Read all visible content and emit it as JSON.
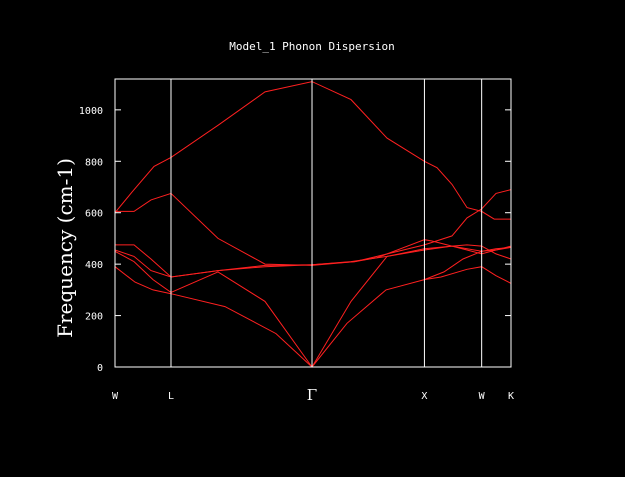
{
  "chart_data": {
    "type": "line",
    "title": "Model_1 Phonon Dispersion",
    "xlabel": "",
    "ylabel": "Frequency (cm-1)",
    "ylim": [
      0,
      1120
    ],
    "y_ticks": [
      0,
      200,
      400,
      600,
      800,
      1000
    ],
    "high_symmetry_points": [
      {
        "label": "W",
        "x": 0.0
      },
      {
        "label": "L",
        "x": 0.1414
      },
      {
        "label": "Γ",
        "x": 0.4975
      },
      {
        "label": "X",
        "x": 0.7814
      },
      {
        "label": "W",
        "x": 0.9259
      },
      {
        "label": "K",
        "x": 1.0
      }
    ],
    "xlim": [
      0,
      1
    ],
    "grid": false,
    "colors": {
      "background": "#000000",
      "frame": "#ffffff",
      "curves": "#ff2020",
      "text": "#ffffff"
    },
    "series": [
      {
        "x": [
          0.0,
          0.0429,
          0.0984,
          0.1414,
          0.2601,
          0.3788,
          0.4975,
          0.596,
          0.6869,
          0.7814,
          0.8131,
          0.851,
          0.8889,
          0.9259,
          0.9577,
          1.0
        ],
        "values": [
          600,
          680,
          780,
          815,
          940,
          1070,
          1110,
          1040,
          890,
          800,
          775,
          710,
          620,
          605,
          575,
          575
        ]
      },
      {
        "x": [
          0.0,
          0.048,
          0.0909,
          0.1414,
          0.2601,
          0.3788,
          0.4975,
          0.6061,
          0.6616,
          0.7814,
          0.8005,
          0.851,
          0.8889,
          0.9259,
          0.9621,
          1.0
        ],
        "values": [
          605,
          605,
          650,
          675,
          500,
          400,
          395,
          410,
          425,
          495,
          490,
          470,
          455,
          440,
          455,
          470
        ]
      },
      {
        "x": [
          0.0,
          0.048,
          0.0909,
          0.1414,
          0.2601,
          0.3788,
          0.4975,
          0.6061,
          0.6616,
          0.7814,
          0.851,
          0.8889,
          0.9259,
          0.9621,
          1.0
        ],
        "values": [
          475,
          475,
          420,
          350,
          375,
          390,
          398,
          410,
          430,
          475,
          510,
          580,
          615,
          675,
          690
        ]
      },
      {
        "x": [
          0.0,
          0.048,
          0.0909,
          0.1414,
          0.2601,
          0.3788,
          0.4975,
          0.596,
          0.6869,
          0.7814,
          0.851,
          0.8889,
          0.9259,
          0.9621,
          1.0
        ],
        "values": [
          455,
          430,
          375,
          350,
          375,
          395,
          398,
          410,
          430,
          460,
          470,
          475,
          470,
          440,
          420
        ]
      },
      {
        "x": [
          0.0,
          0.048,
          0.096,
          0.1414,
          0.2601,
          0.3788,
          0.4975,
          0.596,
          0.6869,
          0.7814,
          0.851,
          0.8889,
          0.9259,
          0.9621,
          1.0
        ],
        "values": [
          450,
          410,
          340,
          290,
          370,
          255,
          0,
          255,
          430,
          455,
          470,
          460,
          450,
          455,
          465
        ]
      },
      {
        "x": [
          0.0,
          0.0505,
          0.096,
          0.1414,
          0.2778,
          0.4066,
          0.4975,
          0.5859,
          0.6843,
          0.7814,
          0.8232,
          0.8889,
          0.9259,
          0.9621,
          1.0
        ],
        "values": [
          390,
          330,
          300,
          285,
          235,
          130,
          0,
          170,
          300,
          340,
          350,
          380,
          390,
          355,
          325
        ]
      },
      {
        "x": [
          0.7814,
          0.8308,
          0.8788,
          0.9259,
          0.9621,
          1.0
        ],
        "values": [
          340,
          370,
          420,
          450,
          460,
          465
        ]
      }
    ]
  }
}
